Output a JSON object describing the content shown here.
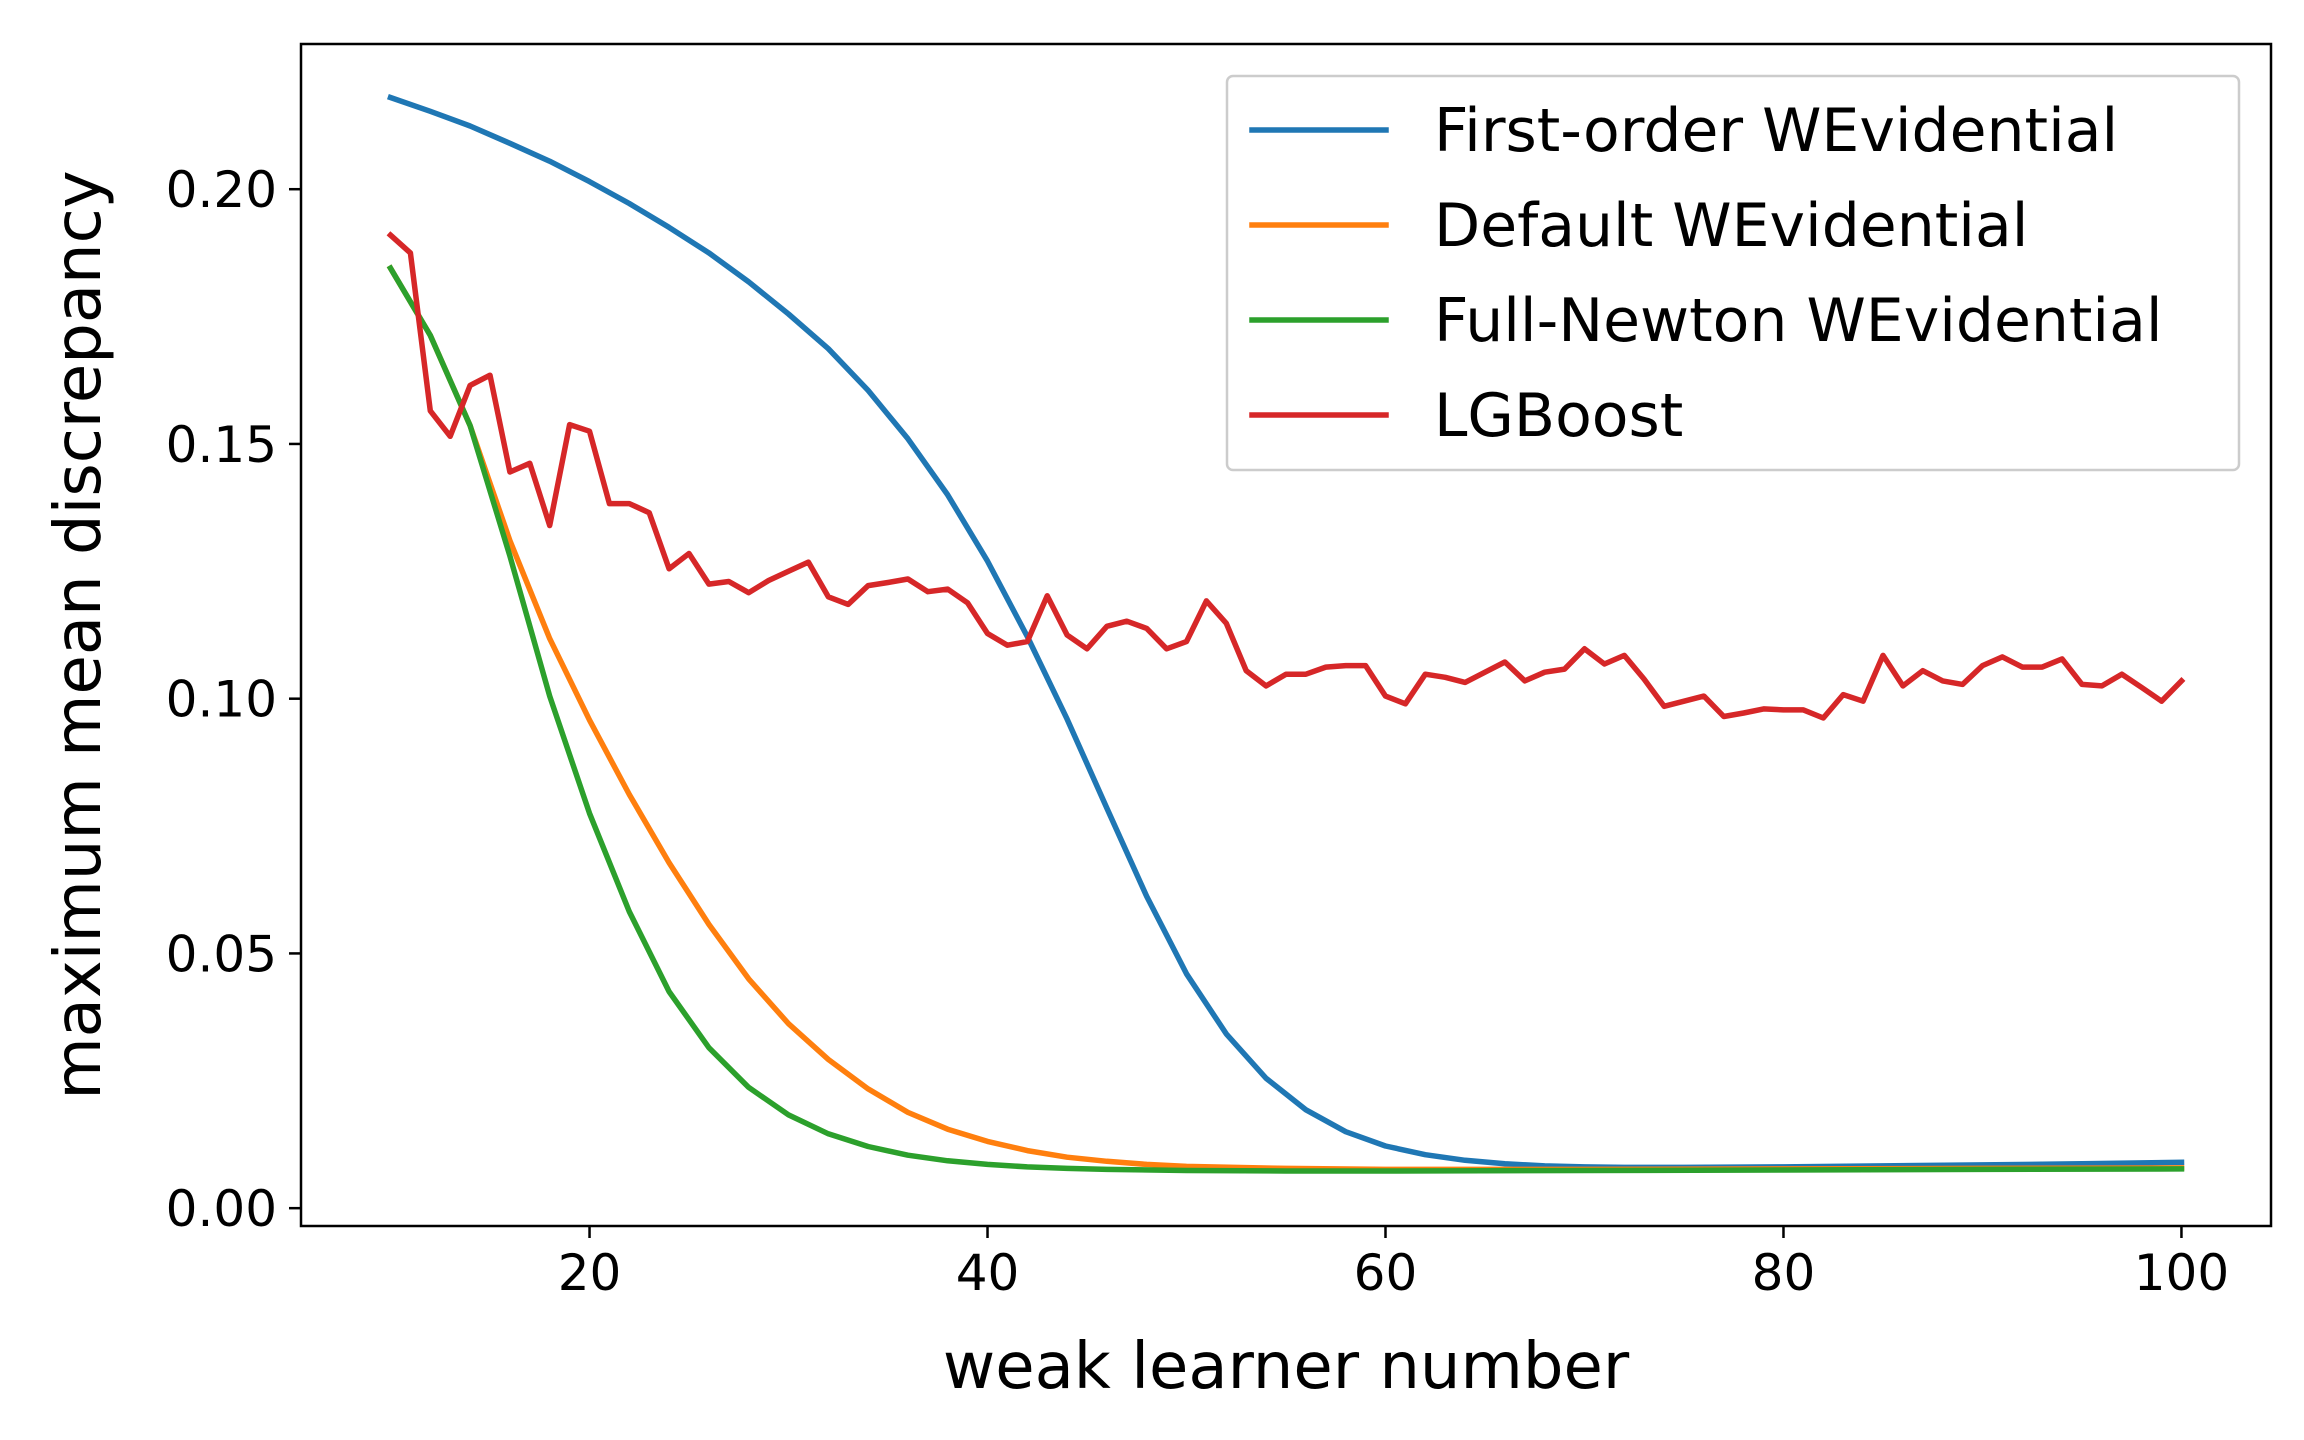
{
  "chart_data": {
    "type": "line",
    "title": "",
    "xlabel": "weak learner number",
    "ylabel": "maximum mean discrepancy",
    "xlim": [
      5.5,
      104.5
    ],
    "ylim": [
      -0.0035,
      0.2285
    ],
    "xticks": [
      20,
      40,
      60,
      80,
      100
    ],
    "xtick_labels": [
      "20",
      "40",
      "60",
      "80",
      "100"
    ],
    "yticks": [
      0.0,
      0.05,
      0.1,
      0.15,
      0.2
    ],
    "ytick_labels": [
      "0.00",
      "0.05",
      "0.10",
      "0.15",
      "0.20"
    ],
    "grid": false,
    "legend_position": "top-right",
    "series": [
      {
        "name": "First-order WEvidential",
        "color": "#1f77b4",
        "x": [
          10,
          12,
          14,
          16,
          18,
          20,
          22,
          24,
          26,
          28,
          30,
          32,
          34,
          36,
          38,
          40,
          42,
          44,
          46,
          48,
          50,
          52,
          54,
          56,
          58,
          60,
          62,
          64,
          66,
          68,
          70,
          72,
          75,
          80,
          85,
          90,
          95,
          100
        ],
        "y": [
          0.218,
          0.2153,
          0.2124,
          0.209,
          0.2055,
          0.2015,
          0.1972,
          0.1925,
          0.1875,
          0.1818,
          0.1755,
          0.1687,
          0.1605,
          0.151,
          0.14,
          0.127,
          0.1122,
          0.096,
          0.0785,
          0.0612,
          0.046,
          0.0342,
          0.0255,
          0.0193,
          0.015,
          0.0122,
          0.0105,
          0.0094,
          0.0087,
          0.0083,
          0.0081,
          0.008,
          0.008,
          0.0081,
          0.0083,
          0.0085,
          0.0087,
          0.009
        ]
      },
      {
        "name": "Default WEvidential",
        "color": "#ff7f0e",
        "x": [
          10,
          12,
          14,
          16,
          18,
          20,
          22,
          24,
          26,
          28,
          30,
          32,
          34,
          36,
          38,
          40,
          42,
          44,
          46,
          48,
          50,
          55,
          60,
          70,
          80,
          90,
          100
        ],
        "y": [
          0.1845,
          0.1713,
          0.1536,
          0.131,
          0.1118,
          0.0958,
          0.0812,
          0.0678,
          0.0557,
          0.045,
          0.0362,
          0.0292,
          0.0234,
          0.0188,
          0.0155,
          0.0131,
          0.0113,
          0.01,
          0.0092,
          0.0086,
          0.0082,
          0.0078,
          0.0076,
          0.0076,
          0.0077,
          0.0078,
          0.0079
        ]
      },
      {
        "name": "Full-Newton WEvidential",
        "color": "#2ca02c",
        "x": [
          10,
          12,
          14,
          16,
          18,
          20,
          22,
          24,
          26,
          28,
          30,
          32,
          34,
          36,
          38,
          40,
          42,
          44,
          46,
          50,
          55,
          60,
          70,
          80,
          90,
          100
        ],
        "y": [
          0.1845,
          0.1713,
          0.1536,
          0.128,
          0.1005,
          0.0775,
          0.0582,
          0.0425,
          0.0315,
          0.0237,
          0.0183,
          0.0146,
          0.0121,
          0.0104,
          0.0093,
          0.0086,
          0.0081,
          0.0078,
          0.0076,
          0.0074,
          0.0073,
          0.0073,
          0.0074,
          0.0075,
          0.0076,
          0.0077
        ]
      },
      {
        "name": "LGBoost",
        "color": "#d62728",
        "x": [
          10,
          11,
          12,
          13,
          14,
          15,
          16,
          17,
          18,
          19,
          20,
          21,
          22,
          23,
          24,
          25,
          26,
          27,
          28,
          29,
          30,
          31,
          32,
          33,
          34,
          35,
          36,
          37,
          38,
          39,
          40,
          41,
          42,
          43,
          44,
          45,
          46,
          47,
          48,
          49,
          50,
          51,
          52,
          53,
          54,
          55,
          56,
          57,
          58,
          59,
          60,
          61,
          62,
          63,
          64,
          65,
          66,
          67,
          68,
          69,
          70,
          71,
          72,
          73,
          74,
          75,
          76,
          77,
          78,
          79,
          80,
          81,
          82,
          83,
          84,
          85,
          86,
          87,
          88,
          89,
          90,
          91,
          92,
          93,
          94,
          95,
          96,
          97,
          98,
          99,
          100
        ],
        "y": [
          0.191,
          0.1875,
          0.1565,
          0.1515,
          0.1615,
          0.1635,
          0.1445,
          0.1462,
          0.134,
          0.1538,
          0.1525,
          0.1383,
          0.1383,
          0.1365,
          0.1255,
          0.1285,
          0.1225,
          0.123,
          0.1208,
          0.1232,
          0.125,
          0.1268,
          0.12,
          0.1185,
          0.1222,
          0.1228,
          0.1235,
          0.121,
          0.1215,
          0.1188,
          0.1128,
          0.1105,
          0.1112,
          0.1202,
          0.1125,
          0.1098,
          0.1142,
          0.1152,
          0.1138,
          0.1098,
          0.1112,
          0.1192,
          0.1148,
          0.1055,
          0.1025,
          0.1048,
          0.1048,
          0.1062,
          0.1065,
          0.1065,
          0.1005,
          0.099,
          0.1048,
          0.1042,
          0.1032,
          0.1052,
          0.1072,
          0.1035,
          0.1052,
          0.1058,
          0.1098,
          0.1068,
          0.1085,
          0.1038,
          0.0985,
          0.0995,
          0.1005,
          0.0965,
          0.0972,
          0.098,
          0.0978,
          0.0978,
          0.0962,
          0.1008,
          0.0995,
          0.1085,
          0.1025,
          0.1055,
          0.1035,
          0.1028,
          0.1065,
          0.1082,
          0.1062,
          0.1062,
          0.1078,
          0.1028,
          0.1025,
          0.1048,
          0.1022,
          0.0995,
          0.1035
        ]
      }
    ]
  }
}
